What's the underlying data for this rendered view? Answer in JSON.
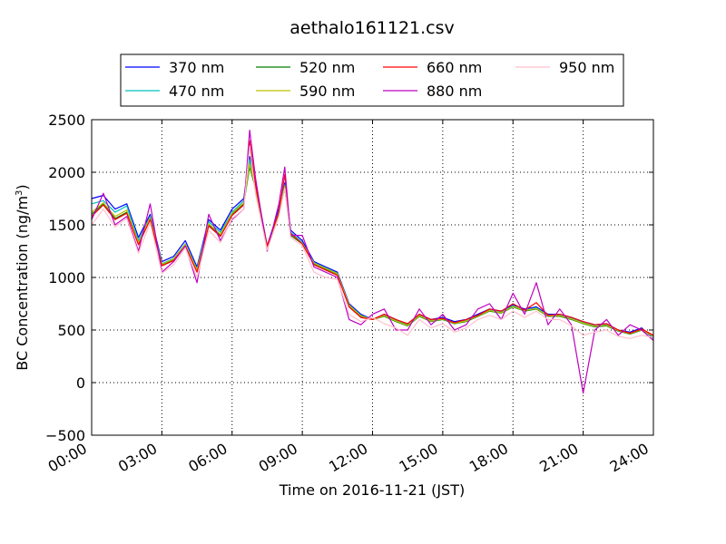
{
  "chart_data": {
    "type": "line",
    "title": "aethalo161121.csv",
    "xlabel": "Time on 2016-11-21 (JST)",
    "ylabel": "BC Concentration (ng/m",
    "ylabel_sup": "3",
    "ylabel_end": ")",
    "xlim": [
      0,
      24
    ],
    "ylim": [
      -500,
      2500
    ],
    "xticks": [
      {
        "value": 0,
        "label": "00:00"
      },
      {
        "value": 3,
        "label": "03:00"
      },
      {
        "value": 6,
        "label": "06:00"
      },
      {
        "value": 9,
        "label": "09:00"
      },
      {
        "value": 12,
        "label": "12:00"
      },
      {
        "value": 15,
        "label": "15:00"
      },
      {
        "value": 18,
        "label": "18:00"
      },
      {
        "value": 21,
        "label": "21:00"
      },
      {
        "value": 24,
        "label": "24:00"
      }
    ],
    "yticks": [
      {
        "value": -500,
        "label": "−500"
      },
      {
        "value": 0,
        "label": "0"
      },
      {
        "value": 500,
        "label": "500"
      },
      {
        "value": 1000,
        "label": "1000"
      },
      {
        "value": 1500,
        "label": "1500"
      },
      {
        "value": 2000,
        "label": "2000"
      },
      {
        "value": 2500,
        "label": "2500"
      }
    ],
    "grid": true,
    "legend_position": "top, above plot",
    "x": [
      0,
      0.5,
      1,
      1.5,
      2,
      2.5,
      3,
      3.5,
      4,
      4.5,
      5,
      5.5,
      6,
      6.5,
      6.75,
      7,
      7.5,
      8,
      8.25,
      8.5,
      9,
      9.5,
      10,
      10.5,
      11,
      11.5,
      12,
      12.5,
      13,
      13.5,
      14,
      14.5,
      15,
      15.5,
      16,
      16.5,
      17,
      17.5,
      18,
      18.5,
      19,
      19.5,
      20,
      20.5,
      21,
      21.5,
      22,
      22.5,
      23,
      23.5,
      24
    ],
    "series": [
      {
        "name": "370 nm",
        "color": "#0000ff",
        "values": [
          1750,
          1780,
          1650,
          1700,
          1380,
          1600,
          1150,
          1200,
          1350,
          1100,
          1550,
          1450,
          1650,
          1750,
          2150,
          1900,
          1300,
          1650,
          1900,
          1450,
          1350,
          1150,
          1100,
          1050,
          750,
          650,
          600,
          650,
          600,
          550,
          650,
          600,
          620,
          580,
          600,
          650,
          700,
          680,
          740,
          700,
          720,
          650,
          650,
          620,
          580,
          550,
          560,
          500,
          480,
          520,
          420
        ]
      },
      {
        "name": "470 nm",
        "color": "#00bfbf",
        "values": [
          1700,
          1730,
          1620,
          1680,
          1350,
          1580,
          1130,
          1180,
          1320,
          1080,
          1530,
          1430,
          1620,
          1730,
          2120,
          1880,
          1290,
          1630,
          1880,
          1430,
          1330,
          1140,
          1090,
          1040,
          740,
          640,
          600,
          640,
          590,
          550,
          640,
          590,
          610,
          570,
          590,
          640,
          690,
          670,
          730,
          690,
          710,
          640,
          640,
          610,
          570,
          540,
          550,
          500,
          470,
          510,
          430
        ]
      },
      {
        "name": "520 nm",
        "color": "#008000",
        "values": [
          1600,
          1700,
          1560,
          1620,
          1320,
          1560,
          1120,
          1170,
          1310,
          1060,
          1500,
          1400,
          1600,
          1700,
          2050,
          1850,
          1280,
          1600,
          1850,
          1400,
          1320,
          1130,
          1080,
          1030,
          730,
          630,
          600,
          630,
          580,
          540,
          630,
          580,
          600,
          560,
          580,
          630,
          680,
          660,
          720,
          680,
          700,
          630,
          630,
          600,
          560,
          530,
          540,
          490,
          460,
          500,
          440
        ]
      },
      {
        "name": "590 nm",
        "color": "#bfbf00",
        "values": [
          1620,
          1710,
          1580,
          1640,
          1330,
          1570,
          1125,
          1175,
          1315,
          1070,
          1510,
          1410,
          1610,
          1710,
          2080,
          1860,
          1285,
          1610,
          1860,
          1410,
          1325,
          1135,
          1085,
          1035,
          735,
          635,
          600,
          635,
          585,
          545,
          635,
          585,
          605,
          565,
          585,
          635,
          685,
          665,
          725,
          685,
          705,
          635,
          635,
          605,
          565,
          535,
          545,
          495,
          465,
          505,
          440
        ]
      },
      {
        "name": "660 nm",
        "color": "#ff0000",
        "values": [
          1580,
          1690,
          1550,
          1610,
          1310,
          1550,
          1110,
          1160,
          1300,
          1050,
          1490,
          1390,
          1590,
          1690,
          2300,
          1880,
          1300,
          1620,
          1980,
          1420,
          1320,
          1120,
          1070,
          1020,
          720,
          620,
          600,
          650,
          600,
          560,
          650,
          600,
          610,
          570,
          600,
          640,
          700,
          680,
          750,
          690,
          760,
          640,
          650,
          620,
          580,
          550,
          560,
          500,
          470,
          510,
          450
        ]
      },
      {
        "name": "880 nm",
        "color": "#bf00bf",
        "values": [
          1550,
          1800,
          1500,
          1580,
          1250,
          1700,
          1050,
          1150,
          1300,
          950,
          1600,
          1350,
          1550,
          1650,
          2400,
          1950,
          1250,
          1700,
          2050,
          1400,
          1400,
          1100,
          1050,
          1000,
          600,
          550,
          650,
          700,
          500,
          500,
          700,
          550,
          650,
          500,
          550,
          700,
          750,
          600,
          850,
          650,
          950,
          550,
          700,
          550,
          -100,
          500,
          600,
          450,
          550,
          500,
          400
        ]
      },
      {
        "name": "950 nm",
        "color": "#ffc0cb",
        "values": [
          1500,
          1650,
          1480,
          1560,
          1230,
          1520,
          1040,
          1120,
          1280,
          1000,
          1450,
          1330,
          1560,
          1650,
          2250,
          1800,
          1260,
          1580,
          1850,
          1380,
          1300,
          1050,
          1000,
          980,
          650,
          580,
          620,
          560,
          520,
          450,
          600,
          520,
          560,
          480,
          520,
          600,
          640,
          600,
          680,
          620,
          680,
          600,
          600,
          540,
          450,
          480,
          500,
          440,
          420,
          450,
          430
        ]
      }
    ]
  }
}
